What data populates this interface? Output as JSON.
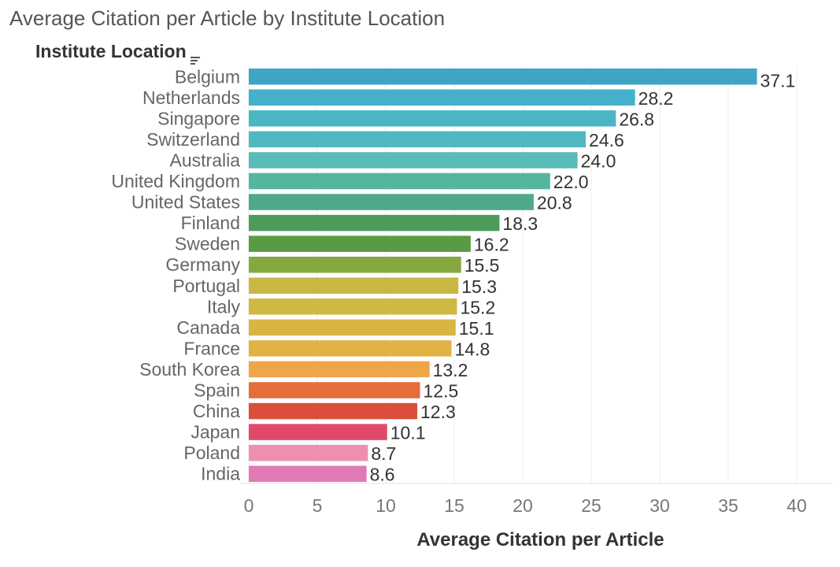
{
  "title": "Average Citation per Article by Institute Location",
  "y_header": "Institute Location",
  "sort_icon": "sort-descending-icon",
  "chart_data": {
    "type": "bar",
    "orientation": "horizontal",
    "title": "Average Citation per Article by Institute Location",
    "xlabel": "Average Citation per Article",
    "ylabel": "Institute Location",
    "xlim": [
      0,
      40
    ],
    "xticks": [
      "0",
      "5",
      "10",
      "15",
      "20",
      "25",
      "30",
      "35",
      "40"
    ],
    "grid": "vertical",
    "categories": [
      "Belgium",
      "Netherlands",
      "Singapore",
      "Switzerland",
      "Australia",
      "United Kingdom",
      "United States",
      "Finland",
      "Sweden",
      "Germany",
      "Portugal",
      "Italy",
      "Canada",
      "France",
      "South Korea",
      "Spain",
      "China",
      "Japan",
      "Poland",
      "India"
    ],
    "values": [
      37.1,
      28.2,
      26.8,
      24.6,
      24.0,
      22.0,
      20.8,
      18.3,
      16.2,
      15.5,
      15.3,
      15.2,
      15.1,
      14.8,
      13.2,
      12.5,
      12.3,
      10.1,
      8.7,
      8.6
    ],
    "labels": [
      "37.1",
      "28.2",
      "26.8",
      "24.6",
      "24.0",
      "22.0",
      "20.8",
      "18.3",
      "16.2",
      "15.5",
      "15.3",
      "15.2",
      "15.1",
      "14.8",
      "13.2",
      "12.5",
      "12.3",
      "10.1",
      "8.7",
      "8.6"
    ],
    "colors": [
      "#3fa5c4",
      "#45b0c9",
      "#4bb5c4",
      "#51b8bf",
      "#58bcb8",
      "#56b5a0",
      "#4ea98a",
      "#4e9c5c",
      "#5b9a44",
      "#85a83f",
      "#c8b843",
      "#d0b844",
      "#d8b544",
      "#e3b244",
      "#efa64a",
      "#e56d3a",
      "#d94f3b",
      "#e04a68",
      "#ef8fb0",
      "#e07ab5"
    ]
  }
}
